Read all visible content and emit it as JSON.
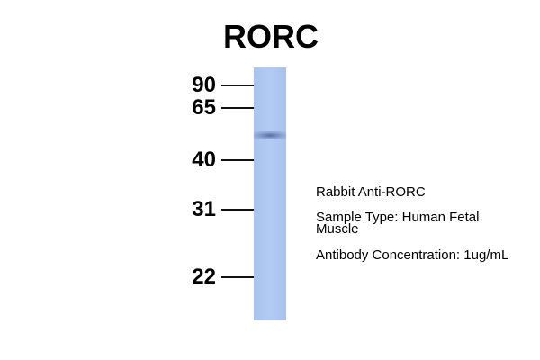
{
  "title": "RORC",
  "markers": [
    {
      "label": "90",
      "kda": 90
    },
    {
      "label": "65",
      "kda": 65
    },
    {
      "label": "40",
      "kda": 40
    },
    {
      "label": "31",
      "kda": 31
    },
    {
      "label": "22",
      "kda": 22
    }
  ],
  "band": {
    "approx_kda": 52,
    "color": "#5a75b0"
  },
  "lane_color": "#aec7f0",
  "info": {
    "antibody": "Rabbit Anti-RORC",
    "sample_line1": "Sample Type: Human Fetal",
    "sample_line2": "Muscle",
    "concentration": "Antibody Concentration: 1ug/mL"
  }
}
